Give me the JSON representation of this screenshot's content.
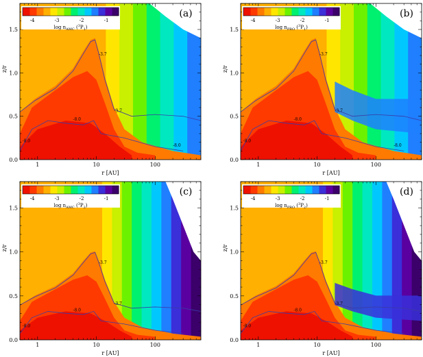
{
  "figure": {
    "colorbar_ticks": [
      "-4",
      "-3",
      "-2",
      "-1"
    ],
    "colorbar_colors": [
      "#3b006a",
      "#5a00a0",
      "#3a2fd9",
      "#1f7fff",
      "#00c8ff",
      "#00e8c0",
      "#00f070",
      "#6cf200",
      "#c8f000",
      "#ffe600",
      "#ffb000",
      "#ff7a00",
      "#ff3a00",
      "#ee1100"
    ]
  },
  "chart_data": [
    {
      "type": "heatmap",
      "panel_label": "(a)",
      "colorbar_label": {
        "prefix": "log n",
        "sub": "AMC",
        "suffix": " (",
        "sup": "3",
        "tail": "P",
        "tail_sub": "1",
        "close": ")"
      },
      "xlabel": "r [AU]",
      "ylabel": "z/r",
      "x_scale": "log",
      "x_ticks": [
        1,
        10,
        100
      ],
      "x_tick_labels": [
        "1",
        "10",
        "100"
      ],
      "y_ticks": [
        0.0,
        0.5,
        1.0,
        1.5
      ],
      "y_tick_labels": [
        "0.0",
        "0.5",
        "1.0",
        "1.5"
      ],
      "xlim": [
        0.5,
        600
      ],
      "ylim": [
        0.0,
        1.8
      ],
      "contour_labels": [
        "-3.7",
        "-3.7",
        "-8.0",
        "-8.0",
        "-8.0"
      ],
      "empty_region": "top-right"
    },
    {
      "type": "heatmap",
      "panel_label": "(b)",
      "colorbar_label": {
        "prefix": "log n",
        "sub": "PRO",
        "suffix": " (",
        "sup": "3",
        "tail": "P",
        "tail_sub": "1",
        "close": ")"
      },
      "xlabel": "r [AU]",
      "ylabel": "z/r",
      "x_scale": "log",
      "x_ticks": [
        1,
        10,
        100
      ],
      "x_tick_labels": [
        "1",
        "10",
        "100"
      ],
      "y_ticks": [
        0.0,
        0.5,
        1.0,
        1.5
      ],
      "y_tick_labels": [
        "0.0",
        "0.5",
        "1.0",
        "1.5"
      ],
      "xlim": [
        0.5,
        600
      ],
      "ylim": [
        0.0,
        1.8
      ],
      "contour_labels": [
        "-3.7",
        "-3.7",
        "-8.0",
        "-8.0",
        "-8.0"
      ],
      "empty_region": "top-right"
    },
    {
      "type": "heatmap",
      "panel_label": "(c)",
      "colorbar_label": {
        "prefix": "log n",
        "sub": "AMC",
        "suffix": " (",
        "sup": "3",
        "tail": "P",
        "tail_sub": "2",
        "close": ")"
      },
      "xlabel": "r [AU]",
      "ylabel": "z/r",
      "x_scale": "log",
      "x_ticks": [
        1,
        10,
        100
      ],
      "x_tick_labels": [
        "1",
        "10",
        "100"
      ],
      "y_ticks": [
        0.0,
        0.5,
        1.0,
        1.5
      ],
      "y_tick_labels": [
        "0.0",
        "0.5",
        "1.0",
        "1.5"
      ],
      "xlim": [
        0.5,
        600
      ],
      "ylim": [
        0.0,
        1.8
      ],
      "contour_labels": [
        "-3.7",
        "-3.7",
        "-8.0",
        "-8.0"
      ],
      "empty_region": "top-right"
    },
    {
      "type": "heatmap",
      "panel_label": "(d)",
      "colorbar_label": {
        "prefix": "log n",
        "sub": "PRO",
        "suffix": " (",
        "sup": "3",
        "tail": "P",
        "tail_sub": "2",
        "close": ")"
      },
      "xlabel": "r [AU]",
      "ylabel": "z/r",
      "x_scale": "log",
      "x_ticks": [
        1,
        10,
        100
      ],
      "x_tick_labels": [
        "1",
        "10",
        "100"
      ],
      "y_ticks": [
        0.0,
        0.5,
        1.0,
        1.5
      ],
      "y_tick_labels": [
        "0.0",
        "0.5",
        "1.0",
        "1.5"
      ],
      "xlim": [
        0.5,
        600
      ],
      "ylim": [
        0.0,
        1.8
      ],
      "contour_labels": [
        "-3.7",
        "-3.7",
        "-8.0",
        "-8.0"
      ],
      "empty_region": "top-right"
    }
  ]
}
